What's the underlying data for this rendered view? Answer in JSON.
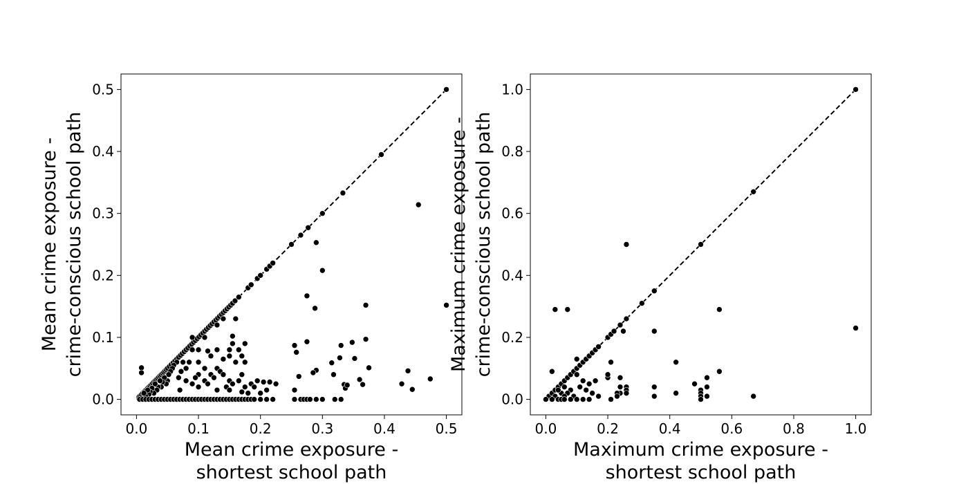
{
  "chart_data": [
    {
      "type": "scatter",
      "xlabel": [
        "Mean crime exposure -",
        "shortest school path"
      ],
      "ylabel": [
        "Mean crime exposure -",
        "crime-conscious school path"
      ],
      "xlim": [
        -0.025,
        0.525
      ],
      "ylim": [
        -0.025,
        0.525
      ],
      "xticks": [
        "0.0",
        "0.1",
        "0.2",
        "0.3",
        "0.4",
        "0.5"
      ],
      "yticks": [
        "0.0",
        "0.1",
        "0.2",
        "0.3",
        "0.4",
        "0.5"
      ],
      "reference_line": {
        "style": "dashed",
        "from": [
          0,
          0
        ],
        "to": [
          0.5,
          0.5
        ]
      },
      "points": [
        [
          0.004,
          0.004
        ],
        [
          0.006,
          0.006
        ],
        [
          0.008,
          0.008
        ],
        [
          0.01,
          0.01
        ],
        [
          0.012,
          0.012
        ],
        [
          0.014,
          0.014
        ],
        [
          0.016,
          0.016
        ],
        [
          0.018,
          0.018
        ],
        [
          0.02,
          0.02
        ],
        [
          0.022,
          0.022
        ],
        [
          0.024,
          0.024
        ],
        [
          0.026,
          0.026
        ],
        [
          0.028,
          0.028
        ],
        [
          0.03,
          0.03
        ],
        [
          0.032,
          0.032
        ],
        [
          0.034,
          0.034
        ],
        [
          0.036,
          0.036
        ],
        [
          0.038,
          0.038
        ],
        [
          0.04,
          0.04
        ],
        [
          0.042,
          0.042
        ],
        [
          0.044,
          0.044
        ],
        [
          0.046,
          0.046
        ],
        [
          0.048,
          0.048
        ],
        [
          0.05,
          0.05
        ],
        [
          0.053,
          0.053
        ],
        [
          0.056,
          0.056
        ],
        [
          0.059,
          0.059
        ],
        [
          0.062,
          0.062
        ],
        [
          0.065,
          0.065
        ],
        [
          0.068,
          0.068
        ],
        [
          0.071,
          0.071
        ],
        [
          0.074,
          0.074
        ],
        [
          0.077,
          0.077
        ],
        [
          0.08,
          0.08
        ],
        [
          0.083,
          0.083
        ],
        [
          0.086,
          0.086
        ],
        [
          0.089,
          0.089
        ],
        [
          0.092,
          0.092
        ],
        [
          0.095,
          0.095
        ],
        [
          0.098,
          0.098
        ],
        [
          0.101,
          0.101
        ],
        [
          0.104,
          0.104
        ],
        [
          0.107,
          0.107
        ],
        [
          0.11,
          0.11
        ],
        [
          0.113,
          0.113
        ],
        [
          0.116,
          0.116
        ],
        [
          0.119,
          0.119
        ],
        [
          0.122,
          0.122
        ],
        [
          0.125,
          0.125
        ],
        [
          0.128,
          0.128
        ],
        [
          0.131,
          0.131
        ],
        [
          0.134,
          0.134
        ],
        [
          0.137,
          0.137
        ],
        [
          0.14,
          0.14
        ],
        [
          0.143,
          0.143
        ],
        [
          0.146,
          0.146
        ],
        [
          0.149,
          0.149
        ],
        [
          0.152,
          0.152
        ],
        [
          0.155,
          0.155
        ],
        [
          0.159,
          0.159
        ],
        [
          0.165,
          0.165
        ],
        [
          0.18,
          0.18
        ],
        [
          0.185,
          0.185
        ],
        [
          0.195,
          0.195
        ],
        [
          0.2,
          0.2
        ],
        [
          0.21,
          0.21
        ],
        [
          0.215,
          0.215
        ],
        [
          0.22,
          0.22
        ],
        [
          0.25,
          0.25
        ],
        [
          0.265,
          0.265
        ],
        [
          0.277,
          0.277
        ],
        [
          0.3,
          0.3
        ],
        [
          0.333,
          0.333
        ],
        [
          0.395,
          0.395
        ],
        [
          0.5,
          0.5
        ],
        [
          0.008,
          0.051
        ],
        [
          0.008,
          0.043
        ],
        [
          0.455,
          0.314
        ],
        [
          0.29,
          0.253
        ],
        [
          0.3,
          0.208
        ],
        [
          0.275,
          0.167
        ],
        [
          0.288,
          0.147
        ],
        [
          0.37,
          0.152
        ],
        [
          0.5,
          0.152
        ],
        [
          0.16,
          0.13
        ],
        [
          0.14,
          0.13
        ],
        [
          0.13,
          0.12
        ],
        [
          0.11,
          0.1
        ],
        [
          0.09,
          0.1
        ],
        [
          0.1,
          0.08
        ],
        [
          0.13,
          0.08
        ],
        [
          0.15,
          0.08
        ],
        [
          0.175,
          0.09
        ],
        [
          0.165,
          0.08
        ],
        [
          0.155,
          0.09
        ],
        [
          0.17,
          0.07
        ],
        [
          0.175,
          0.06
        ],
        [
          0.155,
          0.102
        ],
        [
          0.16,
          0.06
        ],
        [
          0.15,
          0.07
        ],
        [
          0.14,
          0.065
        ],
        [
          0.12,
          0.07
        ],
        [
          0.115,
          0.078
        ],
        [
          0.13,
          0.05
        ],
        [
          0.11,
          0.05
        ],
        [
          0.1,
          0.04
        ],
        [
          0.085,
          0.06
        ],
        [
          0.08,
          0.05
        ],
        [
          0.075,
          0.06
        ],
        [
          0.072,
          0.045
        ],
        [
          0.065,
          0.06
        ],
        [
          0.06,
          0.055
        ],
        [
          0.058,
          0.05
        ],
        [
          0.055,
          0.045
        ],
        [
          0.052,
          0.04
        ],
        [
          0.05,
          0.03
        ],
        [
          0.048,
          0.025
        ],
        [
          0.045,
          0.035
        ],
        [
          0.042,
          0.028
        ],
        [
          0.04,
          0.02
        ],
        [
          0.038,
          0.03
        ],
        [
          0.035,
          0.02
        ],
        [
          0.033,
          0.015
        ],
        [
          0.03,
          0.025
        ],
        [
          0.028,
          0.01
        ],
        [
          0.025,
          0.018
        ],
        [
          0.022,
          0.012
        ],
        [
          0.02,
          0.008
        ],
        [
          0.018,
          0.015
        ],
        [
          0.015,
          0.005
        ],
        [
          0.012,
          0.01
        ],
        [
          0.09,
          0.08
        ],
        [
          0.1,
          0.06
        ],
        [
          0.11,
          0.03
        ],
        [
          0.12,
          0.04
        ],
        [
          0.125,
          0.035
        ],
        [
          0.135,
          0.045
        ],
        [
          0.14,
          0.04
        ],
        [
          0.145,
          0.02
        ],
        [
          0.15,
          0.03
        ],
        [
          0.155,
          0.025
        ],
        [
          0.165,
          0.03
        ],
        [
          0.17,
          0.04
        ],
        [
          0.175,
          0.02
        ],
        [
          0.18,
          0.01
        ],
        [
          0.185,
          0.025
        ],
        [
          0.19,
          0.02
        ],
        [
          0.195,
          0.03
        ],
        [
          0.2,
          0.01
        ],
        [
          0.205,
          0.028
        ],
        [
          0.21,
          0.015
        ],
        [
          0.215,
          0.028
        ],
        [
          0.225,
          0.025
        ],
        [
          0.17,
          0.012
        ],
        [
          0.13,
          0.015
        ],
        [
          0.1,
          0.02
        ],
        [
          0.09,
          0.025
        ],
        [
          0.08,
          0.03
        ],
        [
          0.07,
          0.015
        ],
        [
          0.068,
          0.035
        ],
        [
          0.095,
          0.035
        ],
        [
          0.115,
          0.025
        ],
        [
          0.15,
          0.015
        ],
        [
          0.255,
          0.087
        ],
        [
          0.258,
          0.076
        ],
        [
          0.275,
          0.093
        ],
        [
          0.29,
          0.047
        ],
        [
          0.285,
          0.043
        ],
        [
          0.262,
          0.037
        ],
        [
          0.315,
          0.059
        ],
        [
          0.318,
          0.04
        ],
        [
          0.328,
          0.067
        ],
        [
          0.33,
          0.087
        ],
        [
          0.335,
          0.024
        ],
        [
          0.337,
          0.018
        ],
        [
          0.34,
          0.023
        ],
        [
          0.348,
          0.092
        ],
        [
          0.352,
          0.066
        ],
        [
          0.36,
          0.032
        ],
        [
          0.365,
          0.024
        ],
        [
          0.37,
          0.097
        ],
        [
          0.375,
          0.051
        ],
        [
          0.428,
          0.025
        ],
        [
          0.438,
          0.046
        ],
        [
          0.445,
          0.016
        ],
        [
          0.474,
          0.033
        ],
        [
          0.255,
          0.015
        ],
        [
          0.005,
          0.0
        ],
        [
          0.01,
          0.0
        ],
        [
          0.015,
          0.0
        ],
        [
          0.02,
          0.0
        ],
        [
          0.025,
          0.0
        ],
        [
          0.03,
          0.0
        ],
        [
          0.035,
          0.0
        ],
        [
          0.04,
          0.0
        ],
        [
          0.045,
          0.0
        ],
        [
          0.05,
          0.0
        ],
        [
          0.055,
          0.0
        ],
        [
          0.06,
          0.0
        ],
        [
          0.065,
          0.0
        ],
        [
          0.07,
          0.0
        ],
        [
          0.075,
          0.0
        ],
        [
          0.08,
          0.0
        ],
        [
          0.085,
          0.0
        ],
        [
          0.09,
          0.0
        ],
        [
          0.095,
          0.0
        ],
        [
          0.1,
          0.0
        ],
        [
          0.105,
          0.0
        ],
        [
          0.11,
          0.0
        ],
        [
          0.115,
          0.0
        ],
        [
          0.12,
          0.0
        ],
        [
          0.125,
          0.0
        ],
        [
          0.13,
          0.0
        ],
        [
          0.135,
          0.0
        ],
        [
          0.14,
          0.0
        ],
        [
          0.145,
          0.0
        ],
        [
          0.15,
          0.0
        ],
        [
          0.155,
          0.0
        ],
        [
          0.16,
          0.0
        ],
        [
          0.165,
          0.0
        ],
        [
          0.17,
          0.0
        ],
        [
          0.175,
          0.0
        ],
        [
          0.18,
          0.0
        ],
        [
          0.185,
          0.0
        ],
        [
          0.19,
          0.0
        ],
        [
          0.2,
          0.0
        ],
        [
          0.21,
          0.0
        ],
        [
          0.22,
          0.0
        ],
        [
          0.255,
          0.0
        ],
        [
          0.265,
          0.0
        ],
        [
          0.27,
          0.0
        ],
        [
          0.275,
          0.0
        ],
        [
          0.28,
          0.0
        ],
        [
          0.29,
          0.0
        ],
        [
          0.3,
          0.0
        ],
        [
          0.32,
          0.0
        ],
        [
          0.33,
          0.0
        ]
      ]
    },
    {
      "type": "scatter",
      "xlabel": [
        "Maximum crime exposure -",
        "shortest school path"
      ],
      "ylabel": [
        "Maximum crime exposure -",
        "crime-conscious school path"
      ],
      "xlim": [
        -0.05,
        1.05
      ],
      "ylim": [
        -0.05,
        1.05
      ],
      "xticks": [
        "0.0",
        "0.2",
        "0.4",
        "0.6",
        "0.8",
        "1.0"
      ],
      "yticks": [
        "0.0",
        "0.2",
        "0.4",
        "0.6",
        "0.8",
        "1.0"
      ],
      "reference_line": {
        "style": "dashed",
        "from": [
          0,
          0
        ],
        "to": [
          1,
          1
        ]
      },
      "points": [
        [
          0.01,
          0.01
        ],
        [
          0.02,
          0.02
        ],
        [
          0.03,
          0.03
        ],
        [
          0.04,
          0.04
        ],
        [
          0.05,
          0.05
        ],
        [
          0.06,
          0.06
        ],
        [
          0.07,
          0.07
        ],
        [
          0.08,
          0.08
        ],
        [
          0.09,
          0.09
        ],
        [
          0.1,
          0.1
        ],
        [
          0.11,
          0.11
        ],
        [
          0.12,
          0.12
        ],
        [
          0.13,
          0.13
        ],
        [
          0.14,
          0.14
        ],
        [
          0.15,
          0.15
        ],
        [
          0.16,
          0.16
        ],
        [
          0.17,
          0.17
        ],
        [
          0.2,
          0.2
        ],
        [
          0.21,
          0.21
        ],
        [
          0.22,
          0.22
        ],
        [
          0.24,
          0.24
        ],
        [
          0.26,
          0.26
        ],
        [
          0.31,
          0.31
        ],
        [
          0.35,
          0.35
        ],
        [
          0.5,
          0.5
        ],
        [
          0.67,
          0.67
        ],
        [
          1.0,
          1.0
        ],
        [
          0.03,
          0.29
        ],
        [
          0.07,
          0.29
        ],
        [
          0.26,
          0.5
        ],
        [
          0.56,
          0.29
        ],
        [
          1.0,
          0.23
        ],
        [
          0.35,
          0.22
        ],
        [
          0.25,
          0.22
        ],
        [
          0.21,
          0.12
        ],
        [
          0.42,
          0.12
        ],
        [
          0.02,
          0.09
        ],
        [
          0.1,
          0.13
        ],
        [
          0.12,
          0.06
        ],
        [
          0.14,
          0.05
        ],
        [
          0.16,
          0.06
        ],
        [
          0.1,
          0.08
        ],
        [
          0.11,
          0.04
        ],
        [
          0.13,
          0.03
        ],
        [
          0.15,
          0.02
        ],
        [
          0.17,
          0.01
        ],
        [
          0.08,
          0.03
        ],
        [
          0.09,
          0.01
        ],
        [
          0.06,
          0.04
        ],
        [
          0.05,
          0.02
        ],
        [
          0.04,
          0.03
        ],
        [
          0.03,
          0.01
        ],
        [
          0.07,
          0.02
        ],
        [
          0.06,
          0.01
        ],
        [
          0.2,
          0.07
        ],
        [
          0.2,
          0.08
        ],
        [
          0.24,
          0.07
        ],
        [
          0.24,
          0.04
        ],
        [
          0.24,
          0.02
        ],
        [
          0.23,
          0.02
        ],
        [
          0.23,
          0.01
        ],
        [
          0.26,
          0.04
        ],
        [
          0.26,
          0.03
        ],
        [
          0.26,
          0.02
        ],
        [
          0.35,
          0.04
        ],
        [
          0.35,
          0.01
        ],
        [
          0.42,
          0.02
        ],
        [
          0.48,
          0.05
        ],
        [
          0.5,
          0.03
        ],
        [
          0.5,
          0.02
        ],
        [
          0.5,
          0.01
        ],
        [
          0.52,
          0.07
        ],
        [
          0.52,
          0.04
        ],
        [
          0.52,
          0.01
        ],
        [
          0.56,
          0.09
        ],
        [
          0.67,
          0.01
        ],
        [
          0.0,
          0.0
        ],
        [
          0.02,
          0.0
        ],
        [
          0.04,
          0.0
        ],
        [
          0.05,
          0.0
        ],
        [
          0.06,
          0.0
        ],
        [
          0.08,
          0.0
        ],
        [
          0.1,
          0.0
        ],
        [
          0.12,
          0.0
        ],
        [
          0.14,
          0.0
        ],
        [
          0.21,
          0.0
        ],
        [
          0.5,
          0.0
        ]
      ]
    }
  ]
}
